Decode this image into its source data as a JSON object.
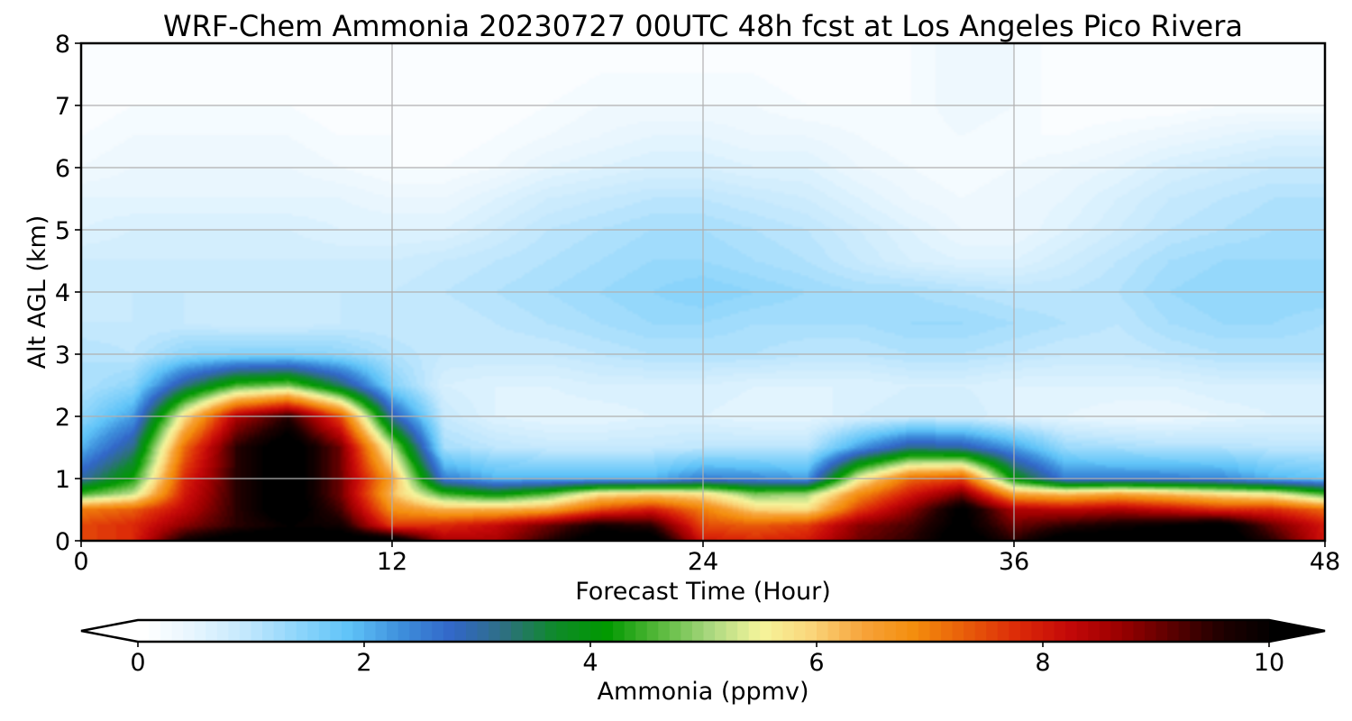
{
  "chart_data": {
    "type": "heatmap",
    "title": "WRF-Chem Ammonia  20230727 00UTC 48h fcst at Los Angeles Pico Rivera",
    "xlabel": "Forecast Time (Hour)",
    "ylabel": "Alt AGL (km)",
    "xlim": [
      0,
      48
    ],
    "ylim": [
      0,
      8
    ],
    "x_ticks": [
      0,
      12,
      24,
      36,
      48
    ],
    "y_ticks": [
      0,
      1,
      2,
      3,
      4,
      5,
      6,
      7,
      8
    ],
    "grid": true,
    "colorbar": {
      "label": "Ammonia  (ppmv)",
      "orientation": "horizontal",
      "position": "bottom",
      "range": [
        0,
        10
      ],
      "ticks": [
        0,
        2,
        4,
        6,
        8,
        10
      ],
      "extend": "both",
      "levels": 100
    },
    "x": [
      0,
      2,
      4,
      6,
      8,
      10,
      12,
      14,
      16,
      18,
      20,
      22,
      24,
      26,
      28,
      30,
      32,
      34,
      36,
      38,
      40,
      42,
      44,
      46,
      48
    ],
    "y": [
      0,
      0.25,
      0.5,
      0.75,
      1,
      1.5,
      2,
      2.5,
      3,
      3.5,
      4,
      4.5,
      5,
      5.5,
      6,
      6.5,
      7,
      7.5,
      8
    ],
    "z": [
      [
        7.5,
        7.8,
        9.8,
        10.5,
        10.5,
        10.5,
        10.5,
        8.5,
        8.5,
        9.5,
        10.5,
        10.5,
        8.0,
        7.8,
        8.0,
        9.0,
        9.5,
        10.5,
        9.5,
        10.5,
        10.5,
        10.5,
        10.5,
        9.5,
        8.0
      ],
      [
        7.5,
        7.8,
        8.8,
        9.5,
        10.0,
        9.8,
        7.6,
        7.8,
        8.2,
        9.0,
        9.8,
        9.5,
        7.5,
        7.3,
        7.6,
        8.8,
        9.3,
        10.2,
        9.0,
        9.5,
        9.8,
        10.0,
        10.3,
        9.0,
        8.0
      ],
      [
        7.0,
        7.3,
        8.3,
        9.5,
        10.5,
        9.3,
        6.8,
        6.3,
        6.3,
        6.5,
        7.5,
        8.0,
        7.0,
        6.0,
        5.8,
        7.6,
        8.8,
        10.2,
        8.5,
        8.3,
        8.5,
        8.2,
        7.8,
        7.8,
        7.2
      ],
      [
        4.5,
        5.2,
        8.0,
        9.5,
        10.5,
        9.0,
        6.2,
        4.5,
        4.0,
        4.6,
        5.8,
        6.0,
        5.8,
        4.8,
        5.0,
        6.8,
        8.0,
        9.0,
        6.5,
        6.2,
        6.5,
        6.2,
        5.8,
        5.5,
        4.5
      ],
      [
        3.0,
        4.2,
        7.8,
        9.5,
        10.5,
        9.0,
        6.5,
        2.5,
        2.0,
        2.0,
        2.0,
        2.0,
        2.5,
        2.4,
        2.2,
        5.5,
        7.2,
        7.5,
        4.0,
        2.5,
        2.5,
        2.5,
        2.4,
        2.0,
        1.8
      ],
      [
        2.0,
        3.2,
        7.2,
        9.5,
        10.5,
        9.0,
        5.2,
        1.2,
        1.0,
        0.9,
        0.9,
        0.9,
        1.0,
        1.0,
        1.0,
        2.2,
        3.2,
        3.0,
        2.2,
        1.3,
        1.2,
        1.1,
        1.1,
        1.0,
        1.0
      ],
      [
        1.4,
        2.2,
        5.8,
        8.5,
        9.5,
        7.5,
        3.0,
        0.9,
        0.6,
        0.5,
        0.5,
        0.6,
        0.6,
        0.5,
        0.5,
        0.7,
        0.8,
        0.8,
        0.6,
        0.5,
        0.4,
        0.4,
        0.5,
        0.6,
        0.6
      ],
      [
        1.1,
        1.4,
        3.2,
        4.5,
        4.8,
        3.4,
        1.5,
        0.7,
        0.6,
        0.6,
        0.7,
        0.7,
        0.7,
        0.6,
        0.6,
        0.6,
        0.7,
        0.7,
        0.6,
        0.6,
        0.6,
        0.6,
        0.7,
        0.7,
        0.7
      ],
      [
        1.1,
        1.0,
        1.4,
        1.5,
        1.5,
        1.4,
        1.1,
        0.9,
        0.9,
        0.9,
        1.0,
        1.1,
        1.1,
        1.1,
        1.0,
        1.0,
        1.1,
        1.1,
        1.0,
        0.9,
        0.9,
        1.0,
        1.1,
        1.1,
        1.1
      ],
      [
        0.9,
        0.9,
        0.9,
        0.8,
        0.8,
        0.9,
        0.9,
        0.9,
        1.0,
        1.1,
        1.2,
        1.3,
        1.3,
        1.2,
        1.2,
        1.2,
        1.3,
        1.3,
        1.2,
        1.1,
        1.0,
        1.2,
        1.3,
        1.3,
        1.2
      ],
      [
        0.8,
        0.9,
        0.9,
        0.9,
        0.9,
        0.9,
        0.9,
        1.0,
        1.1,
        1.2,
        1.3,
        1.4,
        1.5,
        1.4,
        1.3,
        1.2,
        1.2,
        1.1,
        1.0,
        1.0,
        1.1,
        1.3,
        1.4,
        1.4,
        1.4
      ],
      [
        0.8,
        0.8,
        0.8,
        0.8,
        0.8,
        0.8,
        0.8,
        0.9,
        1.0,
        1.1,
        1.2,
        1.3,
        1.3,
        1.2,
        1.1,
        0.9,
        0.7,
        0.6,
        0.6,
        0.8,
        1.0,
        1.2,
        1.3,
        1.3,
        1.3
      ],
      [
        0.6,
        0.7,
        0.7,
        0.7,
        0.7,
        0.6,
        0.6,
        0.6,
        0.8,
        1.0,
        1.1,
        1.2,
        1.2,
        1.1,
        1.0,
        0.8,
        0.6,
        0.4,
        0.4,
        0.6,
        0.8,
        1.0,
        1.1,
        1.2,
        1.2
      ],
      [
        0.5,
        0.5,
        0.5,
        0.5,
        0.5,
        0.5,
        0.4,
        0.4,
        0.6,
        0.8,
        0.9,
        1.0,
        1.0,
        0.9,
        0.8,
        0.6,
        0.4,
        0.3,
        0.4,
        0.5,
        0.7,
        0.9,
        1.0,
        1.1,
        1.1
      ],
      [
        0.3,
        0.4,
        0.4,
        0.4,
        0.4,
        0.3,
        0.2,
        0.2,
        0.3,
        0.5,
        0.6,
        0.7,
        0.7,
        0.6,
        0.6,
        0.4,
        0.3,
        0.2,
        0.3,
        0.4,
        0.5,
        0.7,
        0.8,
        0.9,
        0.9
      ],
      [
        0.2,
        0.3,
        0.3,
        0.3,
        0.3,
        0.2,
        0.2,
        0.1,
        0.2,
        0.3,
        0.4,
        0.5,
        0.5,
        0.4,
        0.4,
        0.3,
        0.2,
        0.3,
        0.2,
        0.2,
        0.3,
        0.4,
        0.5,
        0.6,
        0.6
      ],
      [
        0.1,
        0.2,
        0.2,
        0.2,
        0.2,
        0.1,
        0.1,
        0.1,
        0.1,
        0.2,
        0.3,
        0.3,
        0.3,
        0.3,
        0.2,
        0.2,
        0.2,
        0.4,
        0.3,
        0.1,
        0.1,
        0.1,
        0.2,
        0.2,
        0.2
      ],
      [
        0.1,
        0.1,
        0.1,
        0.1,
        0.1,
        0.1,
        0.1,
        0.1,
        0.1,
        0.1,
        0.2,
        0.2,
        0.2,
        0.2,
        0.1,
        0.1,
        0.2,
        0.4,
        0.3,
        0.1,
        0.1,
        0.1,
        0.1,
        0.1,
        0.1
      ],
      [
        0.1,
        0.1,
        0.1,
        0.1,
        0.1,
        0.1,
        0.1,
        0.1,
        0.1,
        0.1,
        0.1,
        0.1,
        0.1,
        0.1,
        0.1,
        0.1,
        0.2,
        0.4,
        0.3,
        0.1,
        0.1,
        0.1,
        0.1,
        0.1,
        0.1
      ]
    ],
    "colormap": [
      "#ffffff",
      "#e6f5fe",
      "#c2e8fd",
      "#8ed5fb",
      "#5fc3f8",
      "#3e8fdc",
      "#3267c8",
      "#2e6f83",
      "#0f8a2a",
      "#009900",
      "#55b83a",
      "#a8d77e",
      "#f5f59c",
      "#fad57a",
      "#f7a33a",
      "#f48d0c",
      "#e85c0a",
      "#dc2a08",
      "#c40808",
      "#9a0000",
      "#5a0000",
      "#1e0000",
      "#000000"
    ]
  }
}
